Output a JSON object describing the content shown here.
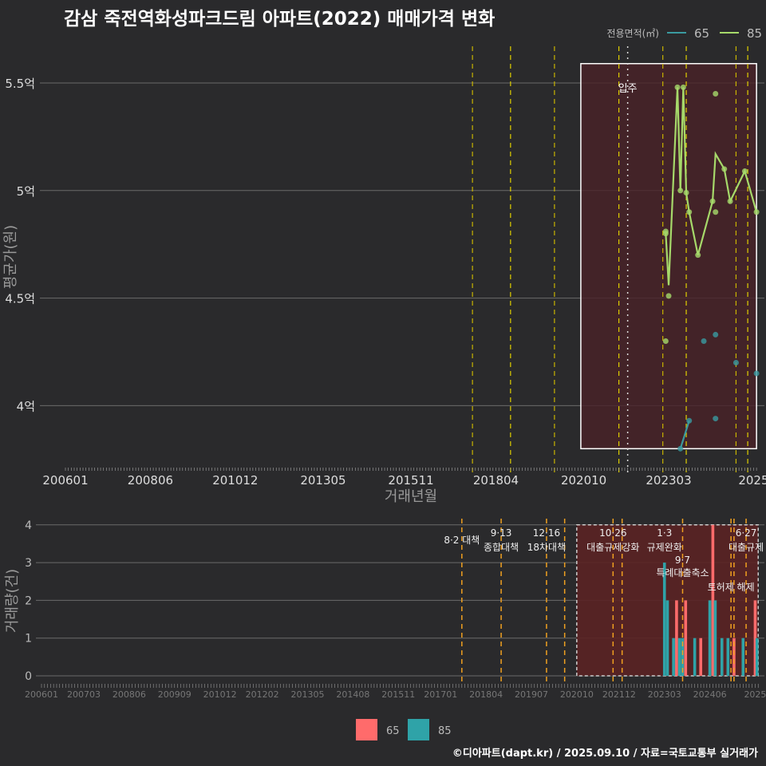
{
  "title": "감삼 죽전역화성파크드림 아파트(2022) 매매가격 변화",
  "footer": "©디아파트(dapt.kr) / 2025.09.10 / 자료=국토교통부 실거래가",
  "colors": {
    "bg": "#2a2a2c",
    "s65": "#3a9aa0",
    "s85": "#a6d96a",
    "bar65": "#ff6b6b",
    "bar85": "#2fa3a8",
    "policy": "#e6c200",
    "policy_bottom": "#f0a020"
  },
  "chart_data": [
    {
      "type": "line",
      "title": "감삼 죽전역화성파크드림 아파트(2022) 매매가격 변화",
      "xlabel": "거래년월",
      "ylabel": "평균가(원)",
      "x_unit": "months since 200601",
      "xlim": [
        0,
        238
      ],
      "ylim": [
        3.7,
        5.67
      ],
      "y_ticks": [
        {
          "v": 4,
          "label": "4억"
        },
        {
          "v": 4.5,
          "label": "4.5억"
        },
        {
          "v": 5,
          "label": "5억"
        },
        {
          "v": 5.5,
          "label": "5.5억"
        }
      ],
      "x_ticks": [
        {
          "m": 0,
          "label": "200601"
        },
        {
          "m": 29,
          "label": "200806"
        },
        {
          "m": 58,
          "label": "201012"
        },
        {
          "m": 88,
          "label": "201305"
        },
        {
          "m": 118,
          "label": "201511"
        },
        {
          "m": 147,
          "label": "201804"
        },
        {
          "m": 177,
          "label": "202010"
        },
        {
          "m": 206,
          "label": "202303"
        },
        {
          "m": 235,
          "label": "2025"
        }
      ],
      "legend": {
        "title": "전용면적(㎡)",
        "placement": "top-right",
        "entries": [
          "65",
          "85"
        ]
      },
      "series": [
        {
          "name": "65",
          "line": [
            [
              210,
              3.8
            ],
            [
              213,
              3.93
            ]
          ],
          "points": [
            [
              210,
              3.8
            ],
            [
              213,
              3.93
            ],
            [
              218,
              4.3
            ],
            [
              222,
              4.33
            ],
            [
              222,
              3.94
            ],
            [
              229,
              4.2
            ],
            [
              236,
              4.15
            ]
          ]
        },
        {
          "name": "85",
          "line": [
            [
              205,
              4.8
            ],
            [
              206,
              4.56
            ],
            [
              209,
              5.48
            ],
            [
              210,
              5.0
            ],
            [
              211,
              5.48
            ],
            [
              212,
              4.99
            ],
            [
              213,
              4.9
            ],
            [
              216,
              4.7
            ],
            [
              221,
              4.95
            ],
            [
              222,
              5.17
            ],
            [
              225,
              5.1
            ],
            [
              227,
              4.95
            ],
            [
              232,
              5.09
            ],
            [
              236,
              4.9
            ]
          ],
          "points": [
            [
              205,
              4.8
            ],
            [
              205,
              4.81
            ],
            [
              206,
              4.51
            ],
            [
              205,
              4.3
            ],
            [
              209,
              5.48
            ],
            [
              210,
              5.0
            ],
            [
              211,
              5.48
            ],
            [
              212,
              4.99
            ],
            [
              213,
              4.9
            ],
            [
              216,
              4.7
            ],
            [
              221,
              4.95
            ],
            [
              222,
              4.9
            ],
            [
              222,
              5.45
            ],
            [
              225,
              5.1
            ],
            [
              227,
              4.95
            ],
            [
              232,
              5.09
            ],
            [
              236,
              4.9
            ]
          ]
        }
      ],
      "highlight_range": {
        "from": 176,
        "to": 236,
        "ymin": 3.8,
        "ymax": 5.59
      },
      "policy_lines": [
        139,
        152,
        167,
        189,
        204,
        212,
        229,
        233
      ],
      "move_in": {
        "m": 192,
        "label": "입주"
      }
    },
    {
      "type": "bar",
      "ylabel": "거래량(건)",
      "xlim": [
        0,
        238
      ],
      "ylim": [
        0,
        4
      ],
      "y_ticks": [
        0,
        1,
        2,
        3,
        4
      ],
      "x_ticks": [
        {
          "m": 0,
          "label": "200601"
        },
        {
          "m": 14,
          "label": "200703"
        },
        {
          "m": 29,
          "label": "200806"
        },
        {
          "m": 44,
          "label": "200909"
        },
        {
          "m": 59,
          "label": "201012"
        },
        {
          "m": 73,
          "label": "201202"
        },
        {
          "m": 88,
          "label": "201305"
        },
        {
          "m": 103,
          "label": "201408"
        },
        {
          "m": 118,
          "label": "201511"
        },
        {
          "m": 132,
          "label": "201701"
        },
        {
          "m": 147,
          "label": "201804"
        },
        {
          "m": 162,
          "label": "201907"
        },
        {
          "m": 177,
          "label": "202010"
        },
        {
          "m": 191,
          "label": "202112"
        },
        {
          "m": 206,
          "label": "202303"
        },
        {
          "m": 221,
          "label": "202406"
        },
        {
          "m": 236,
          "label": "2025"
        }
      ],
      "legend": {
        "placement": "bottom",
        "entries": [
          "65",
          "85"
        ]
      },
      "bars": [
        {
          "m": 206,
          "s": "85",
          "v": 3
        },
        {
          "m": 207,
          "s": "85",
          "v": 2
        },
        {
          "m": 209,
          "s": "85",
          "v": 1
        },
        {
          "m": 210,
          "s": "85",
          "v": 1
        },
        {
          "m": 210,
          "s": "65",
          "v": 2
        },
        {
          "m": 211,
          "s": "85",
          "v": 1
        },
        {
          "m": 212,
          "s": "85",
          "v": 1
        },
        {
          "m": 213,
          "s": "65",
          "v": 2
        },
        {
          "m": 216,
          "s": "85",
          "v": 1
        },
        {
          "m": 218,
          "s": "65",
          "v": 1
        },
        {
          "m": 221,
          "s": "85",
          "v": 2
        },
        {
          "m": 222,
          "s": "65",
          "v": 4
        },
        {
          "m": 222.8,
          "s": "85",
          "v": 2
        },
        {
          "m": 225,
          "s": "85",
          "v": 1
        },
        {
          "m": 227,
          "s": "85",
          "v": 1
        },
        {
          "m": 229,
          "s": "65",
          "v": 1
        },
        {
          "m": 232,
          "s": "85",
          "v": 1
        },
        {
          "m": 236,
          "s": "65",
          "v": 2
        },
        {
          "m": 236.6,
          "s": "85",
          "v": 1
        }
      ],
      "highlight_range": {
        "from": 177,
        "to": 237,
        "ymin": 0,
        "ymax": 4
      },
      "policy_lines": [
        139,
        152,
        167,
        173,
        189,
        192,
        212,
        228,
        229,
        233
      ],
      "annotations": [
        {
          "m": 139,
          "lines": [
            "8·2 대책"
          ],
          "row": 0.5
        },
        {
          "m": 152,
          "lines": [
            "9·13",
            "종합대책"
          ],
          "row": 0
        },
        {
          "m": 167,
          "lines": [
            "12·16",
            "18차대책"
          ],
          "row": 0
        },
        {
          "m": 189,
          "lines": [
            "10·26",
            "대출규제강화"
          ],
          "row": 0
        },
        {
          "m": 206,
          "lines": [
            "1·3",
            "규제완화"
          ],
          "row": 0
        },
        {
          "m": 212,
          "lines": [
            "9·7",
            "특례대출축소"
          ],
          "row": 1
        },
        {
          "m": 228,
          "lines": [
            "토허제 해제"
          ],
          "row": 2
        },
        {
          "m": 233,
          "lines": [
            "6·27",
            "대출규제"
          ],
          "row": 0
        }
      ]
    }
  ]
}
